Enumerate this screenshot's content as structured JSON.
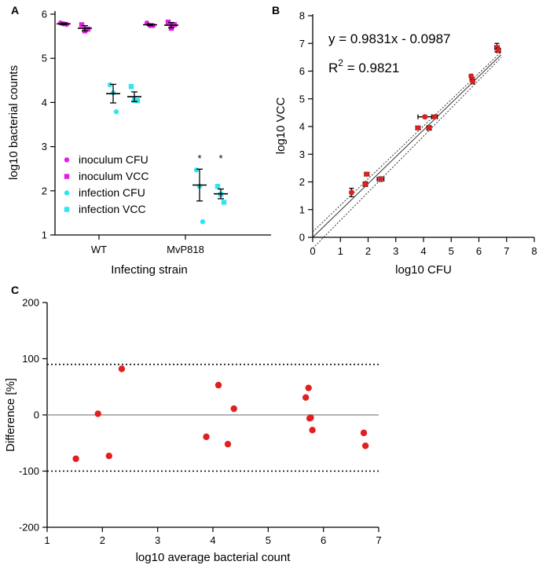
{
  "chart_data": [
    {
      "panel": "A",
      "type": "scatter",
      "xlabel": "Infecting strain",
      "ylabel": "log10 bacterial counts",
      "ylim": [
        1,
        6
      ],
      "yticks": [
        "1",
        "2",
        "3",
        "4",
        "5",
        "6"
      ],
      "categories": [
        "WT",
        "MvP818"
      ],
      "legend": [
        {
          "label": "inoculum CFU",
          "color": "#e020e0",
          "marker": "circle"
        },
        {
          "label": "inoculum VCC",
          "color": "#e020e0",
          "marker": "square"
        },
        {
          "label": "infection CFU",
          "color": "#2ee6ee",
          "marker": "circle"
        },
        {
          "label": "infection VCC",
          "color": "#2ee6ee",
          "marker": "square"
        }
      ],
      "groups": [
        {
          "category": "WT",
          "series": "inoculum CFU",
          "points": [
            5.8,
            5.78,
            5.77
          ],
          "mean": 5.78,
          "sem": 0.02
        },
        {
          "category": "WT",
          "series": "inoculum VCC",
          "points": [
            5.76,
            5.62,
            5.66
          ],
          "mean": 5.68,
          "sem": 0.06
        },
        {
          "category": "WT",
          "series": "infection CFU",
          "points": [
            4.4,
            4.22,
            3.79
          ],
          "mean": 4.2,
          "sem": 0.21
        },
        {
          "category": "WT",
          "series": "infection VCC",
          "points": [
            4.36,
            4.05,
            4.04
          ],
          "mean": 4.13,
          "sem": 0.11
        },
        {
          "category": "MvP818",
          "series": "inoculum CFU",
          "points": [
            5.8,
            5.74,
            5.74
          ],
          "mean": 5.76,
          "sem": 0.02
        },
        {
          "category": "MvP818",
          "series": "inoculum VCC",
          "points": [
            5.82,
            5.68,
            5.76
          ],
          "mean": 5.75,
          "sem": 0.06
        },
        {
          "category": "MvP818",
          "series": "infection CFU",
          "points": [
            2.47,
            2.1,
            1.3
          ],
          "mean": 2.13,
          "sem": 0.36
        },
        {
          "category": "MvP818",
          "series": "infection VCC",
          "points": [
            2.1,
            1.92,
            1.74
          ],
          "mean": 1.93,
          "sem": 0.11
        }
      ],
      "annotations": [
        "*",
        "*"
      ]
    },
    {
      "panel": "B",
      "type": "scatter",
      "xlabel": "log10 CFU",
      "ylabel": "log10 VCC",
      "xlim": [
        0,
        8
      ],
      "ylim": [
        0,
        8
      ],
      "xticks": [
        "0",
        "1",
        "2",
        "3",
        "4",
        "5",
        "6",
        "7",
        "8"
      ],
      "yticks": [
        "0",
        "1",
        "2",
        "3",
        "4",
        "5",
        "6",
        "7",
        "8"
      ],
      "equation": "y = 0.9831x - 0.0987",
      "r2_label": "R",
      "r2_sup": "2",
      "r2_value": " = 0.9821",
      "slope": 0.9831,
      "intercept": -0.0987,
      "color": "#e02020",
      "points": [
        {
          "x": 1.4,
          "y": 1.62,
          "xerr": 0.05,
          "yerr": 0.15
        },
        {
          "x": 1.9,
          "y": 1.92,
          "xerr": 0.08,
          "yerr": 0.08
        },
        {
          "x": 1.95,
          "y": 2.28,
          "xerr": 0.08,
          "yerr": 0.05
        },
        {
          "x": 2.45,
          "y": 2.1,
          "xerr": 0.12,
          "yerr": 0.08
        },
        {
          "x": 3.8,
          "y": 3.95,
          "xerr": 0.08,
          "yerr": 0.05
        },
        {
          "x": 4.05,
          "y": 4.35,
          "xerr": 0.25,
          "yerr": 0.05
        },
        {
          "x": 4.2,
          "y": 3.95,
          "xerr": 0.08,
          "yerr": 0.08
        },
        {
          "x": 4.4,
          "y": 4.35,
          "xerr": 0.1,
          "yerr": 0.05
        },
        {
          "x": 5.72,
          "y": 5.82,
          "xerr": 0.05,
          "yerr": 0.05
        },
        {
          "x": 5.75,
          "y": 5.7,
          "xerr": 0.05,
          "yerr": 0.05
        },
        {
          "x": 5.78,
          "y": 5.62,
          "xerr": 0.05,
          "yerr": 0.08
        },
        {
          "x": 6.65,
          "y": 6.85,
          "xerr": 0.08,
          "yerr": 0.15
        },
        {
          "x": 6.7,
          "y": 6.75,
          "xerr": 0.08,
          "yerr": 0.08
        }
      ]
    },
    {
      "panel": "C",
      "type": "scatter",
      "xlabel": "log10 average bacterial count",
      "ylabel": "Difference [%]",
      "xlim": [
        1,
        7
      ],
      "ylim": [
        -200,
        200
      ],
      "xticks": [
        "1",
        "2",
        "3",
        "4",
        "5",
        "6",
        "7"
      ],
      "yticks": [
        "-200",
        "-100",
        "0",
        "100",
        "200"
      ],
      "reference_lines": {
        "bias": 0,
        "upper": 90,
        "lower": -100
      },
      "color": "#e02020",
      "points": [
        {
          "x": 1.52,
          "y": -78
        },
        {
          "x": 1.92,
          "y": 2
        },
        {
          "x": 2.12,
          "y": -73
        },
        {
          "x": 2.35,
          "y": 82
        },
        {
          "x": 3.88,
          "y": -39
        },
        {
          "x": 4.1,
          "y": 53
        },
        {
          "x": 4.27,
          "y": -52
        },
        {
          "x": 4.38,
          "y": 11
        },
        {
          "x": 5.68,
          "y": 31
        },
        {
          "x": 5.73,
          "y": 48
        },
        {
          "x": 5.75,
          "y": -6
        },
        {
          "x": 5.77,
          "y": -5
        },
        {
          "x": 5.8,
          "y": -27
        },
        {
          "x": 6.73,
          "y": -32
        },
        {
          "x": 6.76,
          "y": -55
        }
      ]
    }
  ]
}
